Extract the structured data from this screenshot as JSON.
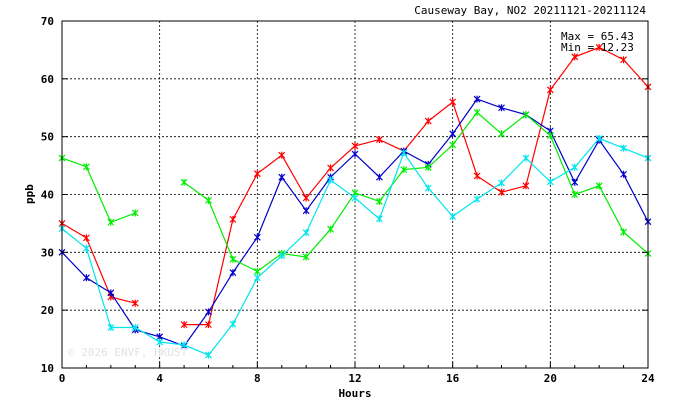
{
  "chart_data": {
    "type": "line",
    "title": "Causeway Bay, NO2 20211121-20211124",
    "xlabel": "Hours",
    "ylabel": "ppb",
    "xlim": [
      0,
      24
    ],
    "ylim": [
      10,
      70
    ],
    "x_ticks": [
      0,
      4,
      8,
      12,
      16,
      20,
      24
    ],
    "y_ticks": [
      10,
      20,
      30,
      40,
      50,
      60,
      70
    ],
    "grid": true,
    "annotations": {
      "max": "Max = 65.43",
      "min": "Min = 12.23"
    },
    "watermark": "© 2026  ENVF, HKUST",
    "x": [
      0,
      1,
      2,
      3,
      4,
      5,
      6,
      7,
      8,
      9,
      10,
      11,
      12,
      13,
      14,
      15,
      16,
      17,
      18,
      19,
      20,
      21,
      22,
      23,
      24
    ],
    "series": [
      {
        "color": "#ff0000",
        "values": [
          35.0,
          32.5,
          22.3,
          21.2,
          null,
          17.5,
          17.5,
          35.7,
          43.6,
          46.8,
          39.4,
          44.6,
          48.4,
          49.5,
          47.5,
          52.7,
          56.0,
          43.2,
          40.4,
          41.5,
          58.1,
          63.8,
          65.43,
          63.3,
          58.6
        ]
      },
      {
        "color": "#0000cc",
        "values": [
          30.0,
          25.6,
          23.0,
          16.6,
          15.4,
          13.8,
          19.7,
          26.5,
          32.6,
          43.0,
          37.2,
          43.0,
          47.0,
          43.0,
          47.5,
          45.2,
          50.5,
          56.5,
          55.0,
          53.8,
          51.0,
          42.1,
          49.4,
          43.5,
          35.3
        ]
      },
      {
        "color": "#00ee00",
        "values": [
          46.3,
          44.8,
          35.2,
          36.8,
          null,
          42.1,
          39.0,
          28.8,
          26.7,
          29.8,
          29.2,
          34.0,
          40.3,
          38.8,
          44.3,
          44.7,
          48.6,
          54.2,
          50.5,
          53.8,
          50.2,
          40.0,
          41.5,
          33.5,
          29.8
        ]
      },
      {
        "color": "#00e5ee",
        "values": [
          34.1,
          30.7,
          17.0,
          17.0,
          14.5,
          14.0,
          12.23,
          17.6,
          25.6,
          29.4,
          33.4,
          42.5,
          39.4,
          35.8,
          47.2,
          41.1,
          36.2,
          39.2,
          42.0,
          46.3,
          42.2,
          44.7,
          49.7,
          48.0,
          46.3
        ]
      }
    ]
  }
}
